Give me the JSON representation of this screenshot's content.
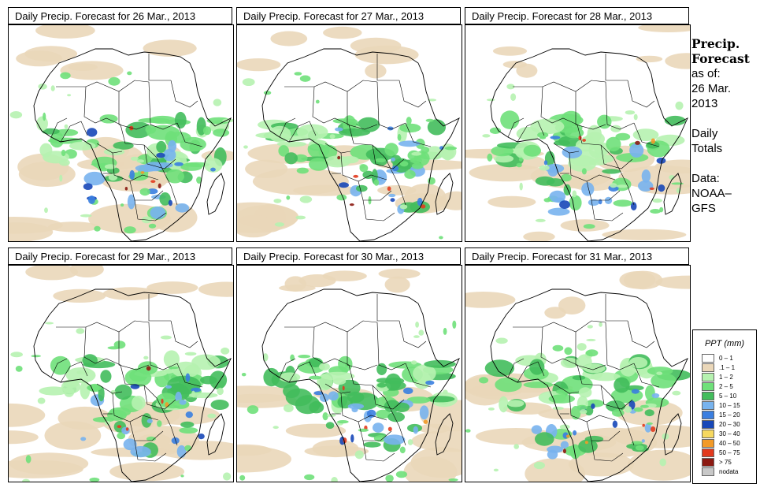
{
  "panels": [
    {
      "title": "Daily Precip. Forecast for  26 Mar., 2013"
    },
    {
      "title": "Daily Precip. Forecast for  27 Mar., 2013"
    },
    {
      "title": "Daily Precip. Forecast for  28 Mar., 2013"
    },
    {
      "title": "Daily Precip. Forecast for  29 Mar., 2013"
    },
    {
      "title": "Daily Precip. Forecast for  30 Mar., 2013"
    },
    {
      "title": "Daily Precip. Forecast for  31 Mar., 2013"
    }
  ],
  "side": {
    "heading1": "Precip.",
    "heading2": "Forecast",
    "asof": "as of:",
    "date1": "26 Mar.",
    "date2": "2013",
    "totals1": "Daily",
    "totals2": "Totals",
    "data1": "Data:",
    "data2": "NOAA–",
    "data3": "GFS"
  },
  "legend": {
    "title": "PPT (mm)",
    "items": [
      {
        "label": "0 – 1",
        "color": "#ffffff"
      },
      {
        "label": ".1 – 1",
        "color": "#ead7b9"
      },
      {
        "label": "1 – 2",
        "color": "#b6f2b0"
      },
      {
        "label": "2 – 5",
        "color": "#6fe07a"
      },
      {
        "label": "5 – 10",
        "color": "#43bd5c"
      },
      {
        "label": "10 – 15",
        "color": "#78b3ee"
      },
      {
        "label": "15 – 20",
        "color": "#3a7ee0"
      },
      {
        "label": "20 – 30",
        "color": "#1747b8"
      },
      {
        "label": "30 – 40",
        "color": "#f6d860"
      },
      {
        "label": "40 – 50",
        "color": "#f29a28"
      },
      {
        "label": "50 – 75",
        "color": "#e23a1e"
      },
      {
        "label": "> 75",
        "color": "#8c1a12"
      },
      {
        "label": "nodata",
        "color": "#c8c8c8"
      }
    ]
  }
}
